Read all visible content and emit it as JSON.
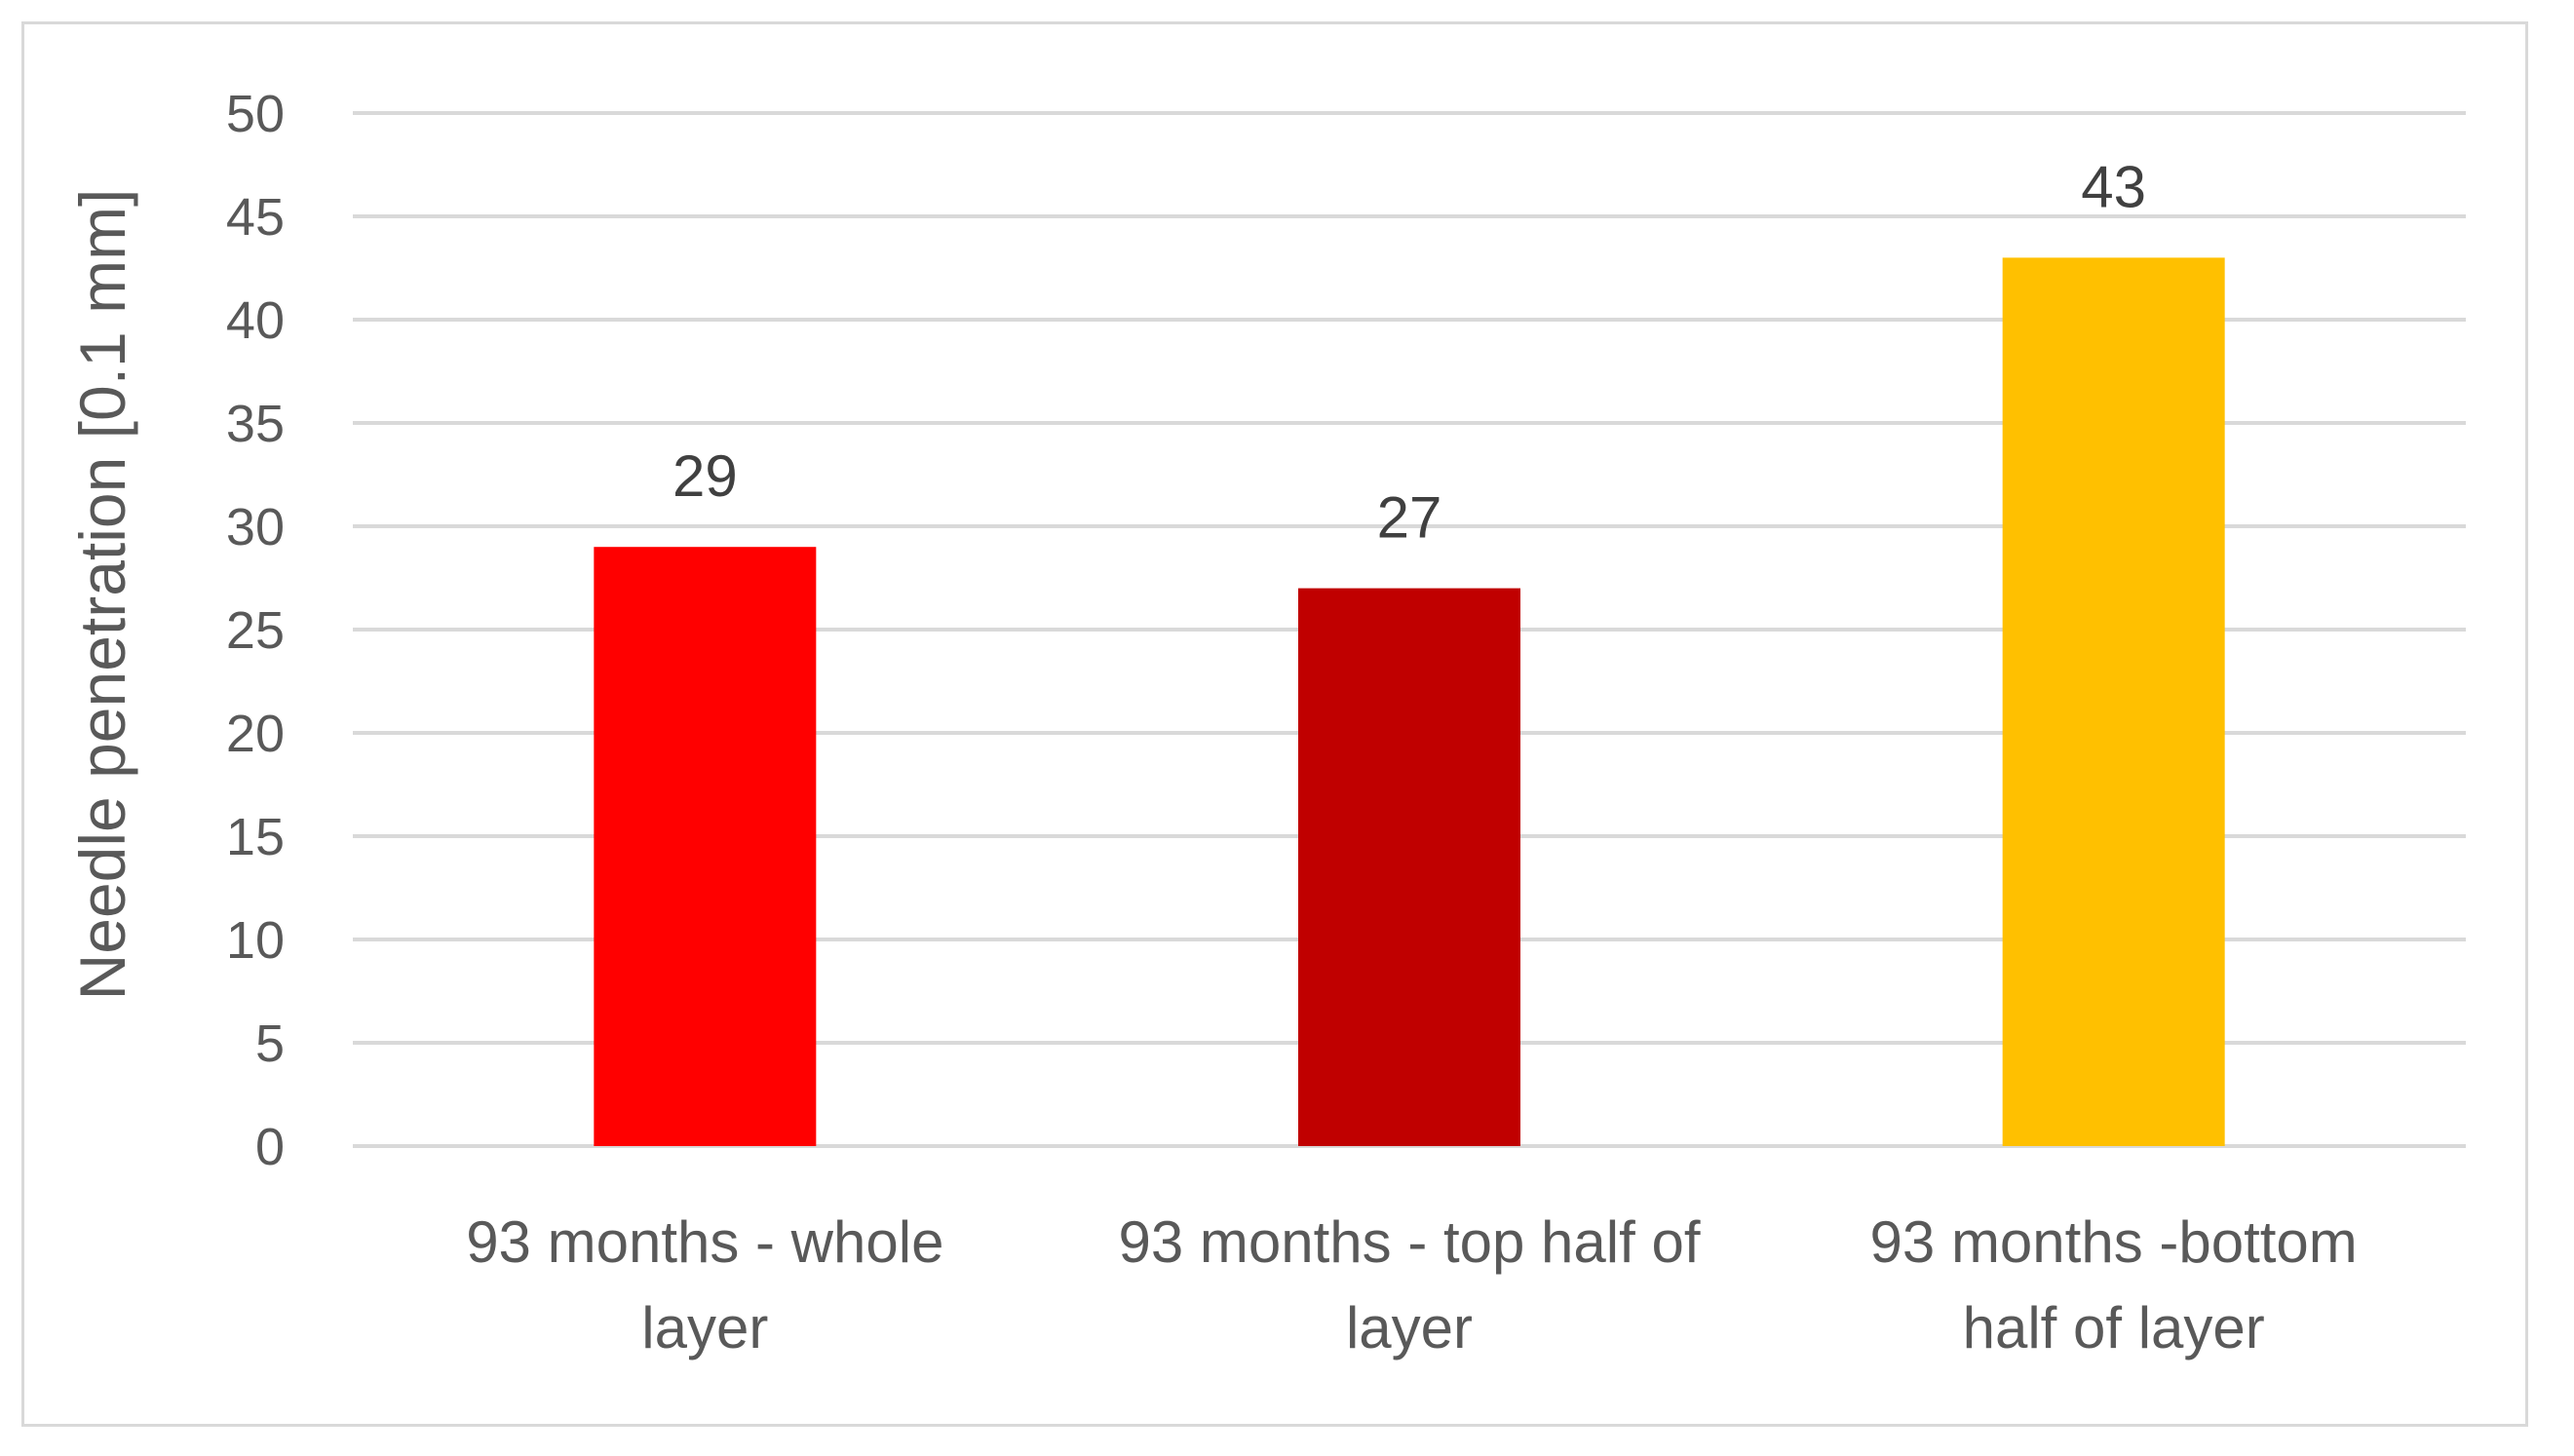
{
  "chart_data": {
    "type": "bar",
    "title": "",
    "xlabel": "",
    "ylabel": "Needle penetration [0.1 mm]",
    "categories": [
      [
        "93 months - whole",
        "layer"
      ],
      [
        "93 months - top half of",
        "layer"
      ],
      [
        "93 months -bottom",
        "half of layer"
      ]
    ],
    "values": [
      29,
      27,
      43
    ],
    "data_labels": [
      "29",
      "27",
      "43"
    ],
    "colors": [
      "#ff0000",
      "#c00000",
      "#ffc000"
    ],
    "ylim": [
      0,
      50
    ],
    "yticks": [
      0,
      5,
      10,
      15,
      20,
      25,
      30,
      35,
      40,
      45,
      50
    ],
    "grid": true,
    "legend": "none"
  }
}
